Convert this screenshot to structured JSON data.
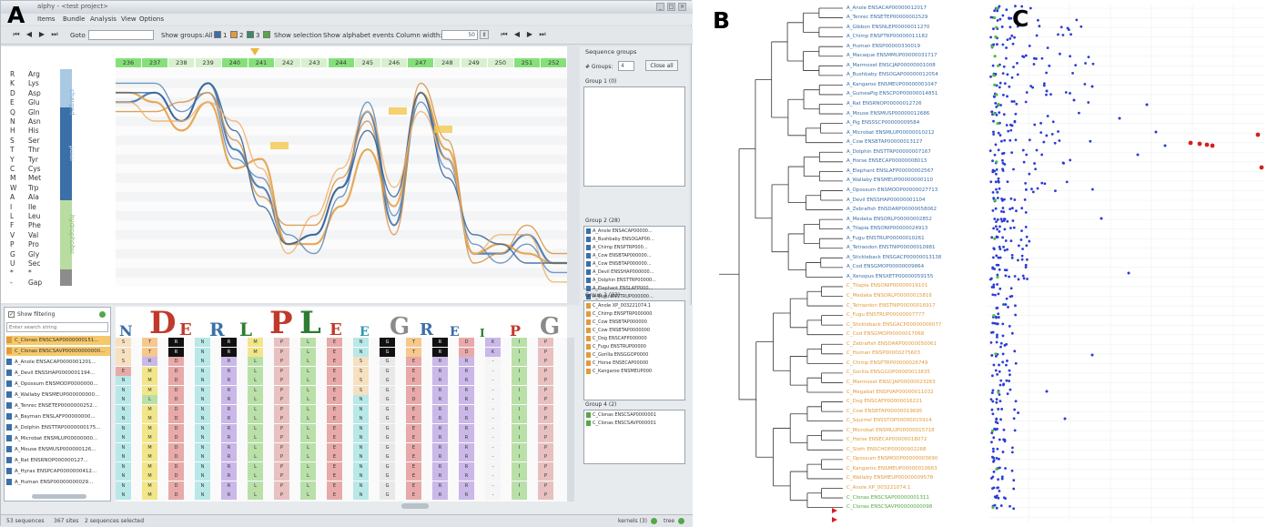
{
  "panels": {
    "a": "A",
    "b": "B",
    "c": "C"
  },
  "window": {
    "title": "alphy - <test project>",
    "controls": [
      "_",
      "□",
      "×"
    ],
    "menu": [
      "Items",
      "Bundle",
      "Analysis",
      "View",
      "Options"
    ]
  },
  "toolbar": {
    "nav_first": "⏮",
    "nav_prev": "◀",
    "nav_next": "▶",
    "nav_last": "⏭",
    "goto_label": "Goto",
    "show_groups": "Show groups:",
    "all": "All",
    "group_numbers": [
      "1",
      "2",
      "3",
      "4"
    ],
    "show_selection": "Show selection",
    "show_alphabet": "Show alphabet events",
    "column_width": "Column width:",
    "column_width_value": "50"
  },
  "chart": {
    "alphabet": [
      {
        "code": "R",
        "name": "Arg"
      },
      {
        "code": "K",
        "name": "Lys"
      },
      {
        "code": "D",
        "name": "Asp"
      },
      {
        "code": "E",
        "name": "Glu"
      },
      {
        "code": "Q",
        "name": "Gln"
      },
      {
        "code": "N",
        "name": "Asn"
      },
      {
        "code": "H",
        "name": "His"
      },
      {
        "code": "S",
        "name": "Ser"
      },
      {
        "code": "T",
        "name": "Thr"
      },
      {
        "code": "Y",
        "name": "Tyr"
      },
      {
        "code": "C",
        "name": "Cys"
      },
      {
        "code": "M",
        "name": "Met"
      },
      {
        "code": "W",
        "name": "Trp"
      },
      {
        "code": "A",
        "name": "Ala"
      },
      {
        "code": "I",
        "name": "Ile"
      },
      {
        "code": "L",
        "name": "Leu"
      },
      {
        "code": "F",
        "name": "Phe"
      },
      {
        "code": "V",
        "name": "Val"
      },
      {
        "code": "P",
        "name": "Pro"
      },
      {
        "code": "G",
        "name": "Gly"
      },
      {
        "code": "U",
        "name": "Sec"
      },
      {
        "code": "*",
        "name": "*"
      },
      {
        "code": "-",
        "name": "Gap"
      }
    ],
    "categories": [
      "charged",
      "polar",
      "hydrophobic"
    ],
    "columns": [
      "236",
      "237",
      "238",
      "239",
      "240",
      "241",
      "242",
      "243",
      "244",
      "245",
      "246",
      "247",
      "248",
      "249",
      "250",
      "251",
      "252"
    ],
    "highlighted_columns": [
      0,
      1,
      4,
      5,
      8,
      11,
      15,
      16
    ]
  },
  "seqlist": {
    "checkbox_label": "Show filtering",
    "search_placeholder": "Enter search string",
    "items": [
      {
        "name": "C_Clonas ENSCSAP0000000151...",
        "color": "#e39a3b",
        "selected": true
      },
      {
        "name": "C_Clonas ENSCSAVP00000000000...",
        "color": "#e39a3b",
        "selected": true
      },
      {
        "name": "A_Anole ENSACAP0000001201...",
        "color": "#3a6fa8",
        "selected": false
      },
      {
        "name": "A_Devil ENSSHAP0000001194...",
        "color": "#3a6fa8",
        "selected": false
      },
      {
        "name": "A_Opossum ENSMODP0000000...",
        "color": "#3a6fa8",
        "selected": false
      },
      {
        "name": "A_Wallaby ENSMEUP000000000...",
        "color": "#3a6fa8",
        "selected": false
      },
      {
        "name": "A_Tenrec ENSETEP0000000252...",
        "color": "#3a6fa8",
        "selected": false
      },
      {
        "name": "A_Bayman ENSLAFP00000000...",
        "color": "#3a6fa8",
        "selected": false
      },
      {
        "name": "A_Dolphin ENSTTRP0000000175...",
        "color": "#3a6fa8",
        "selected": false
      },
      {
        "name": "A_Microbat ENSMLUP00000000...",
        "color": "#3a6fa8",
        "selected": false
      },
      {
        "name": "A_Mouse ENSMUSP000000126...",
        "color": "#3a6fa8",
        "selected": false
      },
      {
        "name": "A_Rat ENSRNOP000000127...",
        "color": "#3a6fa8",
        "selected": false
      },
      {
        "name": "A_Hyrax ENSPCAP0000000412...",
        "color": "#3a6fa8",
        "selected": false
      },
      {
        "name": "A_Human ENSP00000000029...",
        "color": "#3a6fa8",
        "selected": false
      }
    ]
  },
  "alignment": {
    "logo": [
      "N",
      "D",
      "E",
      "R",
      "L",
      "P",
      "L",
      "E",
      "E",
      "G",
      "R",
      "E",
      "I",
      "P",
      "G"
    ],
    "rows": [
      [
        "S",
        "T",
        "R",
        "N",
        "R",
        "M",
        "P",
        "L",
        "E",
        "N",
        "G",
        "T",
        "R",
        "D",
        "K",
        "I",
        "P"
      ],
      [
        "S",
        "T",
        "R",
        "N",
        "R",
        "M",
        "P",
        "L",
        "E",
        "N",
        "G",
        "T",
        "R",
        "D",
        "K",
        "I",
        "P"
      ],
      [
        "S",
        "R",
        "D",
        "N",
        "R",
        "L",
        "P",
        "L",
        "E",
        "S",
        "G",
        "E",
        "R",
        "R",
        "-",
        "I",
        "P"
      ],
      [
        "E",
        "M",
        "D",
        "N",
        "R",
        "L",
        "P",
        "L",
        "E",
        "S",
        "G",
        "E",
        "R",
        "R",
        "-",
        "I",
        "P"
      ],
      [
        "N",
        "M",
        "D",
        "N",
        "R",
        "L",
        "P",
        "L",
        "E",
        "S",
        "G",
        "E",
        "R",
        "R",
        "-",
        "I",
        "P"
      ],
      [
        "N",
        "M",
        "D",
        "N",
        "R",
        "L",
        "P",
        "L",
        "E",
        "S",
        "G",
        "E",
        "R",
        "R",
        "-",
        "I",
        "P"
      ],
      [
        "N",
        "L",
        "D",
        "N",
        "R",
        "L",
        "P",
        "L",
        "E",
        "N",
        "G",
        "D",
        "R",
        "R",
        "-",
        "I",
        "P"
      ],
      [
        "N",
        "M",
        "D",
        "N",
        "R",
        "L",
        "P",
        "L",
        "E",
        "N",
        "G",
        "E",
        "R",
        "R",
        "-",
        "I",
        "P"
      ],
      [
        "N",
        "M",
        "D",
        "N",
        "R",
        "L",
        "P",
        "L",
        "E",
        "N",
        "G",
        "E",
        "R",
        "R",
        "-",
        "I",
        "P"
      ],
      [
        "N",
        "M",
        "D",
        "N",
        "R",
        "L",
        "P",
        "L",
        "E",
        "N",
        "G",
        "E",
        "R",
        "R",
        "-",
        "I",
        "P"
      ],
      [
        "N",
        "M",
        "D",
        "N",
        "R",
        "L",
        "P",
        "L",
        "E",
        "N",
        "G",
        "E",
        "R",
        "R",
        "-",
        "I",
        "P"
      ],
      [
        "N",
        "M",
        "D",
        "N",
        "R",
        "L",
        "P",
        "L",
        "E",
        "N",
        "G",
        "E",
        "R",
        "R",
        "-",
        "I",
        "P"
      ],
      [
        "N",
        "M",
        "D",
        "N",
        "R",
        "L",
        "P",
        "L",
        "E",
        "N",
        "G",
        "E",
        "R",
        "R",
        "-",
        "I",
        "P"
      ],
      [
        "N",
        "M",
        "D",
        "N",
        "R",
        "L",
        "P",
        "L",
        "E",
        "N",
        "G",
        "E",
        "R",
        "R",
        "-",
        "I",
        "P"
      ],
      [
        "N",
        "M",
        "D",
        "N",
        "R",
        "L",
        "P",
        "L",
        "E",
        "N",
        "G",
        "E",
        "R",
        "R",
        "-",
        "I",
        "P"
      ],
      [
        "N",
        "M",
        "D",
        "N",
        "R",
        "L",
        "P",
        "L",
        "E",
        "N",
        "G",
        "E",
        "R",
        "R",
        "-",
        "I",
        "P"
      ],
      [
        "N",
        "M",
        "D",
        "N",
        "R",
        "L",
        "P",
        "L",
        "E",
        "N",
        "G",
        "E",
        "R",
        "R",
        "-",
        "I",
        "P"
      ]
    ]
  },
  "groups": {
    "title": "Sequence groups",
    "groups_label": "# Groups:",
    "groups_value": "4",
    "close_all": "Close all",
    "list": [
      {
        "title": "Group 1 (0)",
        "color": "#3a6fa8",
        "items": []
      },
      {
        "title": "Group 2 (28)",
        "color": "#3a6fa8",
        "items": [
          "A_Anole ENSACAP00000...",
          "A_Bushbaby ENSOGAP00...",
          "A_Chimp ENSPTRP000...",
          "A_Cow ENSBTAP000000...",
          "A_Cow ENSBTAP000000...",
          "A_Devil ENSSHAP000000...",
          "A_Dolphin ENSTTRP00000...",
          "A_Elephant ENSLAFP000...",
          "A_Fugu ENSTRUP000000...",
          "A_Human ENSP000000..."
        ]
      },
      {
        "title": "Group 3 (23)",
        "color": "#e39a3b",
        "items": [
          "C_Anole XP_003221074.1",
          "C_Chimp ENSPTRP000000",
          "C_Cow ENSBTAP000000",
          "C_Cow ENSBTAP0000000",
          "C_Dog ENSCAFP000000",
          "C_Fugu ENSTRUP00000",
          "C_Gorilla ENSGGOP0000",
          "C_Horse ENSECAP00000",
          "C_Kangaroo ENSMEUP000"
        ]
      },
      {
        "title": "Group 4 (2)",
        "color": "#54a846",
        "items": [
          "C_Clonas ENSCSAP0000001",
          "C_Clonas ENSCSAVP000001"
        ]
      }
    ]
  },
  "status": {
    "sequences": "53 sequences",
    "sites": "367 sites",
    "selected": "2 sequences selected",
    "kernels": "kernels (3)",
    "tree": "tree"
  },
  "tree": {
    "leaves": [
      {
        "name": "A_Anole ENSACAP00000012017",
        "group": "blue"
      },
      {
        "name": "A_Tenrec ENSETEP00000002529",
        "group": "blue"
      },
      {
        "name": "A_Gibbon ENSNLEP00000011270",
        "group": "blue"
      },
      {
        "name": "A_Chimp ENSPTRP00000011182",
        "group": "blue"
      },
      {
        "name": "A_Human ENSP00000330019",
        "group": "blue"
      },
      {
        "name": "A_Macaque ENSMMUP00000031717",
        "group": "blue"
      },
      {
        "name": "A_Marmoset ENSCJAP00000001008",
        "group": "blue"
      },
      {
        "name": "A_Bushbaby ENSOGAP00000012054",
        "group": "blue"
      },
      {
        "name": "A_Kangaroo ENSMEUP00000001047",
        "group": "blue"
      },
      {
        "name": "A_GuineaPig ENSCPOP00000014851",
        "group": "blue"
      },
      {
        "name": "A_Rat ENSRNOP00000012726",
        "group": "blue"
      },
      {
        "name": "A_Mouse ENSMUSP00000012686",
        "group": "blue"
      },
      {
        "name": "A_Pig ENSSSCP00000009584",
        "group": "blue"
      },
      {
        "name": "A_Microbat ENSMLUP00000010212",
        "group": "blue"
      },
      {
        "name": "A_Cow ENSBTAP00000013127",
        "group": "blue"
      },
      {
        "name": "A_Dolphin ENSTTRP00000007167",
        "group": "blue"
      },
      {
        "name": "A_Horse ENSECAP00000008013",
        "group": "blue"
      },
      {
        "name": "A_Elephant ENSLAFP00000002567",
        "group": "blue"
      },
      {
        "name": "A_Wallaby ENSMEUP00000000110",
        "group": "blue"
      },
      {
        "name": "A_Opossum ENSMODP00000027713",
        "group": "blue"
      },
      {
        "name": "A_Devil ENSSHAP00000001104",
        "group": "blue"
      },
      {
        "name": "A_Zebrafish ENSDARP00000058062",
        "group": "blue"
      },
      {
        "name": "A_Medaka ENSORLP00000002852",
        "group": "blue"
      },
      {
        "name": "A_Tilapia ENSONIP00000024913",
        "group": "blue"
      },
      {
        "name": "A_Fugu ENSTRUP00000010261",
        "group": "blue"
      },
      {
        "name": "A_Tetraodon ENSTNIP00000010981",
        "group": "blue"
      },
      {
        "name": "A_Stickleback ENSGACP00000013138",
        "group": "blue"
      },
      {
        "name": "A_Cod ENSGMOP00000009864",
        "group": "blue"
      },
      {
        "name": "A_Xenopus ENSXETP00000059155",
        "group": "blue"
      },
      {
        "name": "C_Tilapia ENSONIP00000019101",
        "group": "orange"
      },
      {
        "name": "C_Medaka ENSORLP00000015816",
        "group": "orange"
      },
      {
        "name": "C_Tetraodon ENSTNIP00000016917",
        "group": "orange"
      },
      {
        "name": "C_Fugu ENSTRUP00000007777",
        "group": "orange"
      },
      {
        "name": "C_Stickleback ENSGACP00000006077",
        "group": "orange"
      },
      {
        "name": "C_Cod ENSGMOP00000017068",
        "group": "orange"
      },
      {
        "name": "C_Zebrafish ENSDARP00000050061",
        "group": "orange"
      },
      {
        "name": "C_Human ENSP00000275603",
        "group": "orange"
      },
      {
        "name": "C_Chimp ENSPTRP00000026749",
        "group": "orange"
      },
      {
        "name": "C_Gorilla ENSGGOP00000013835",
        "group": "orange"
      },
      {
        "name": "C_Marmoset ENSCJAP00000023263",
        "group": "orange"
      },
      {
        "name": "C_Megabat ENSPVAP00000011032",
        "group": "orange"
      },
      {
        "name": "C_Dog ENSCAFP00000016221",
        "group": "orange"
      },
      {
        "name": "C_Cow ENSBTAP00000019695",
        "group": "orange"
      },
      {
        "name": "C_Squirrel ENSSTOP00000015914",
        "group": "orange"
      },
      {
        "name": "C_Microbat ENSMLUP00000015718",
        "group": "orange"
      },
      {
        "name": "C_Horse ENSECAP00000018072",
        "group": "orange"
      },
      {
        "name": "C_Sloth ENSCHOP00000002268",
        "group": "orange"
      },
      {
        "name": "C_Opossum ENSMODP00000003690",
        "group": "orange"
      },
      {
        "name": "C_Kangaroo ENSMEUP00000010663",
        "group": "orange"
      },
      {
        "name": "C_Wallaby ENSMEUP00000009578",
        "group": "orange"
      },
      {
        "name": "C_Anole XP_003221074.1",
        "group": "orange"
      },
      {
        "name": "C_Clonas ENSCSAP00000001311",
        "group": "green"
      },
      {
        "name": "C_Clonas ENSCSAVP00000000098",
        "group": "green"
      }
    ]
  },
  "colors": {
    "blue": "#3a6fa8",
    "orange": "#e39a3b",
    "green": "#54a846",
    "red": "#d42020",
    "scatter_blue": "#2a3bd6",
    "scatter_green": "#4cc23d",
    "highlight": "#86e07a"
  }
}
